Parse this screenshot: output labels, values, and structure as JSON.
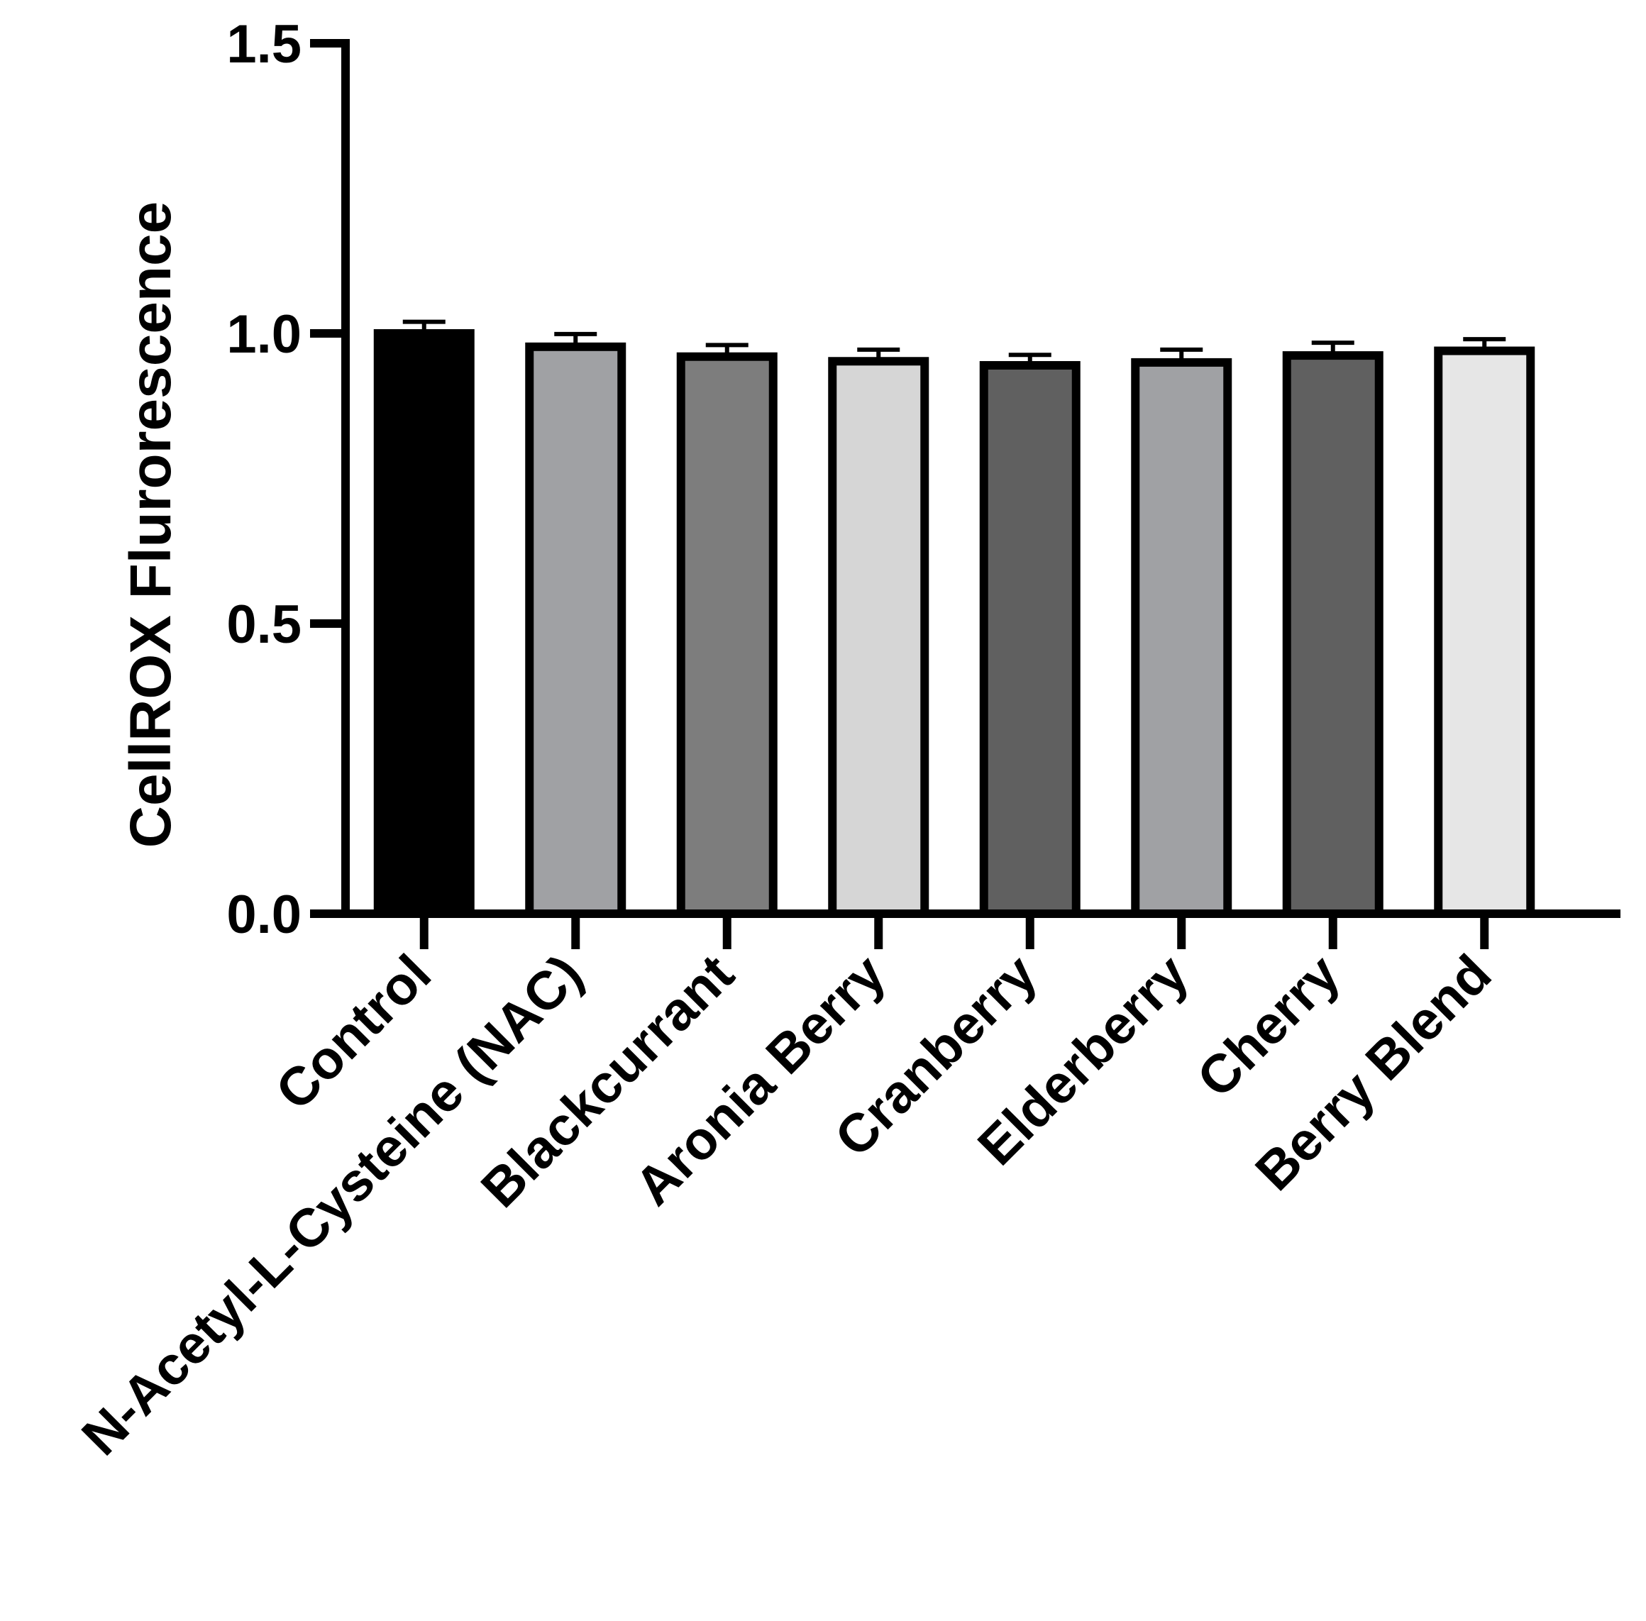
{
  "chart_data": {
    "type": "bar",
    "title": "",
    "xlabel": "",
    "ylabel": "CellROX Flurorescence",
    "ylim": [
      0,
      1.5
    ],
    "yticks": [
      "0.0",
      "0.5",
      "1.0",
      "1.5"
    ],
    "grid": false,
    "legend": "none",
    "categories": [
      "Control",
      "N-Acetyl-L-Cysteine (NAC)",
      "Blackcurrant",
      "Aronia Berry",
      "Cranberry",
      "Elderberry",
      "Cherry",
      "Berry Blend"
    ],
    "values": [
      1.0,
      0.977,
      0.96,
      0.952,
      0.945,
      0.95,
      0.962,
      0.97
    ],
    "errors": [
      0.02,
      0.022,
      0.02,
      0.02,
      0.018,
      0.022,
      0.022,
      0.02
    ],
    "colors": [
      "#000000",
      "#a0a1a4",
      "#7d7d7d",
      "#d6d6d6",
      "#606060",
      "#a0a1a4",
      "#606060",
      "#e6e6e6"
    ],
    "outline_color": "#000000"
  }
}
